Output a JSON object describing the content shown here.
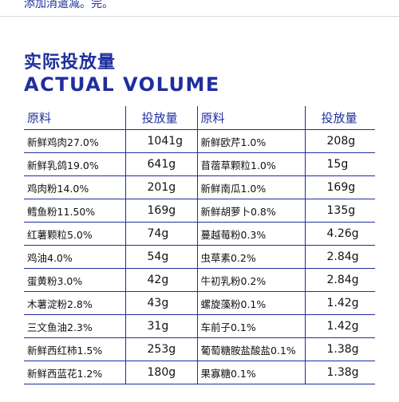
{
  "header": {
    "top_note": "添加消遣减。完。",
    "title_cn": "实际投放量",
    "title_en": "ACTUAL VOLUME"
  },
  "table": {
    "headers": [
      "原料",
      "投放量",
      "原料",
      "投放量"
    ],
    "rows": [
      [
        "新鲜鸡肉27.0%",
        "1041g",
        "新鲜欧芹1.0%",
        "208g"
      ],
      [
        "新鲜乳鸽19.0%",
        "641g",
        "苜蓿草颗粒1.0%",
        "15g"
      ],
      [
        "鸡肉粉14.0%",
        "201g",
        "新鲜南瓜1.0%",
        "169g"
      ],
      [
        "鳕鱼粉11.50%",
        "169g",
        "新鲜胡萝卜0.8%",
        "135g"
      ],
      [
        "红薯颗粒5.0%",
        "74g",
        "蔓越莓粉0.3%",
        "4.26g"
      ],
      [
        "鸡油4.0%",
        "54g",
        "虫草素0.2%",
        "2.84g"
      ],
      [
        "蛋黄粉3.0%",
        "42g",
        "牛初乳粉0.2%",
        "2.84g"
      ],
      [
        "木薯淀粉2.8%",
        "43g",
        "螺旋藻粉0.1%",
        "1.42g"
      ],
      [
        "三文鱼油2.3%",
        "31g",
        "车前子0.1%",
        "1.42g"
      ],
      [
        "新鲜西红柿1.5%",
        "253g",
        "葡萄糖胺盐酸盐0.1%",
        "1.38g"
      ],
      [
        "新鲜西蓝花1.2%",
        "180g",
        "果寡糖0.1%",
        "1.38g"
      ]
    ]
  }
}
